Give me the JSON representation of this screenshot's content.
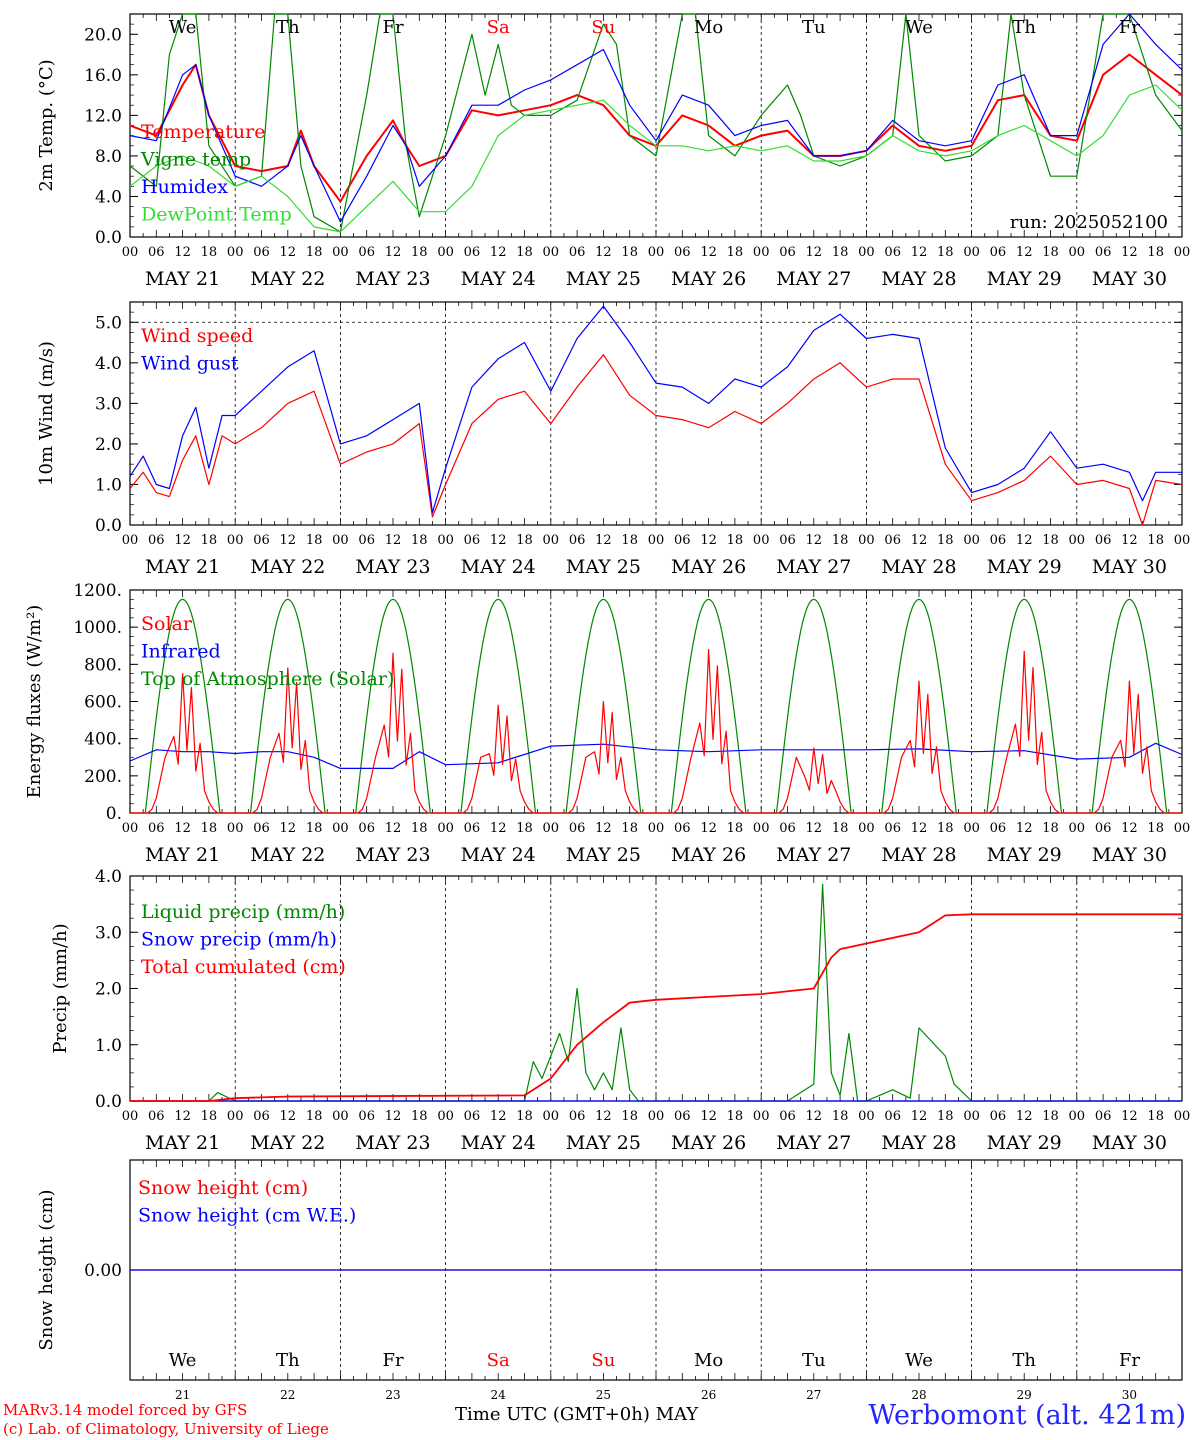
{
  "site_title": "Werbomont (alt. 421m)",
  "credit_line1": "MARv3.14 model forced by GFS",
  "credit_line2": "(c) Lab. of Climatology, University of Liege",
  "bottom_xlabel": "Time UTC (GMT+0h) MAY",
  "run_label": "run: 2025052100",
  "days": [
    {
      "dow": "We",
      "date": "MAY 21",
      "num": "21",
      "weekend": false
    },
    {
      "dow": "Th",
      "date": "MAY 22",
      "num": "22",
      "weekend": false
    },
    {
      "dow": "Fr",
      "date": "MAY 23",
      "num": "23",
      "weekend": false
    },
    {
      "dow": "Sa",
      "date": "MAY 24",
      "num": "24",
      "weekend": true
    },
    {
      "dow": "Su",
      "date": "MAY 25",
      "num": "25",
      "weekend": true
    },
    {
      "dow": "Mo",
      "date": "MAY 26",
      "num": "26",
      "weekend": false
    },
    {
      "dow": "Tu",
      "date": "MAY 27",
      "num": "27",
      "weekend": false
    },
    {
      "dow": "We",
      "date": "MAY 28",
      "num": "28",
      "weekend": false
    },
    {
      "dow": "Th",
      "date": "MAY 29",
      "num": "29",
      "weekend": false
    },
    {
      "dow": "Fr",
      "date": "MAY 30",
      "num": "30",
      "weekend": false
    }
  ],
  "hour_ticks": [
    "00",
    "06",
    "12",
    "18"
  ],
  "colors": {
    "red": "#ff0000",
    "green": "#008800",
    "blue": "#0000ff",
    "lightgreen": "#33dd33",
    "weekend": "#ff0000"
  },
  "chart_data": [
    {
      "type": "line",
      "ylabel": "2m Temp. (°C)",
      "ylim": [
        0,
        22
      ],
      "yticks": [
        "0.0",
        "4.0",
        "8.0",
        "12.0",
        "16.0",
        "20.0"
      ],
      "ytick_values": [
        0,
        4,
        8,
        12,
        16,
        20
      ],
      "x_unit": "hours since MAY 21 00 UTC",
      "series": [
        {
          "name": "Temperature",
          "color": "#ff0000",
          "x": [
            0,
            6,
            12,
            15,
            18,
            24,
            30,
            36,
            39,
            42,
            48,
            54,
            60,
            63,
            66,
            72,
            78,
            84,
            90,
            96,
            102,
            108,
            114,
            120,
            126,
            132,
            138,
            144,
            150,
            156,
            162,
            168,
            174,
            180,
            186,
            192,
            198,
            204,
            210,
            216,
            222,
            228,
            234,
            240
          ],
          "y": [
            11,
            10,
            15,
            17,
            12,
            7,
            6.5,
            7,
            10.5,
            7,
            3.5,
            8,
            11.5,
            9,
            7,
            8,
            12.5,
            12,
            12.5,
            13,
            14,
            13,
            10,
            9,
            12,
            11,
            9,
            10,
            10.5,
            8,
            8,
            8.5,
            11,
            9,
            8.5,
            9,
            13.5,
            14,
            10,
            9.5,
            16,
            18,
            16,
            14
          ]
        },
        {
          "name": "Vigne temp",
          "color": "#008800",
          "x": [
            0,
            6,
            9,
            12,
            15,
            18,
            24,
            30,
            33,
            36,
            39,
            42,
            48,
            54,
            57,
            60,
            63,
            66,
            72,
            78,
            81,
            84,
            87,
            90,
            96,
            102,
            108,
            111,
            114,
            120,
            126,
            129,
            132,
            138,
            144,
            150,
            153,
            156,
            162,
            168,
            174,
            177,
            180,
            186,
            192,
            198,
            201,
            204,
            210,
            216,
            222,
            228,
            234,
            240
          ],
          "y": [
            7,
            5,
            18,
            22,
            22,
            9,
            5,
            6,
            22,
            22,
            7,
            2,
            0.5,
            14,
            22,
            22,
            9,
            2,
            10,
            20,
            14,
            19,
            13,
            12,
            12,
            13.5,
            21,
            19,
            10,
            8,
            22,
            22,
            10,
            8,
            12,
            15,
            12,
            8,
            7,
            8,
            10,
            22,
            10,
            7.5,
            8,
            10,
            22,
            14,
            6,
            6,
            22,
            22,
            14,
            10.5
          ]
        },
        {
          "name": "Humidex",
          "color": "#0000ff",
          "x": [
            0,
            6,
            12,
            15,
            18,
            24,
            30,
            36,
            39,
            42,
            48,
            54,
            60,
            63,
            66,
            72,
            78,
            84,
            90,
            96,
            102,
            108,
            114,
            120,
            126,
            132,
            138,
            144,
            150,
            156,
            162,
            168,
            174,
            180,
            186,
            192,
            198,
            204,
            210,
            216,
            222,
            228,
            234,
            240
          ],
          "y": [
            10,
            9.5,
            16,
            17,
            12,
            6,
            5,
            7,
            10,
            7,
            1.5,
            6,
            11,
            9,
            5,
            8,
            13,
            13,
            14.5,
            15.5,
            17,
            18.5,
            13,
            9.5,
            14,
            13,
            10,
            11,
            11.5,
            8,
            8,
            8.5,
            11.5,
            9.5,
            9,
            9.5,
            15,
            16,
            10,
            10,
            19,
            22,
            19,
            16.5
          ]
        },
        {
          "name": "DewPoint Temp",
          "color": "#33dd33",
          "x": [
            0,
            6,
            12,
            18,
            24,
            30,
            36,
            42,
            48,
            54,
            60,
            66,
            72,
            78,
            84,
            90,
            96,
            102,
            108,
            114,
            120,
            126,
            132,
            138,
            144,
            150,
            156,
            162,
            168,
            174,
            180,
            186,
            192,
            198,
            204,
            210,
            216,
            222,
            228,
            234,
            240
          ],
          "y": [
            5,
            7,
            8,
            7,
            5,
            6,
            4,
            1,
            0.5,
            3,
            5.5,
            2.5,
            2.5,
            5,
            10,
            12,
            12.5,
            13,
            13.5,
            11,
            9,
            9,
            8.5,
            9,
            8.5,
            9,
            7.5,
            7.5,
            8,
            10,
            8.5,
            8,
            8.5,
            10,
            11,
            9.5,
            8,
            10,
            14,
            15,
            12.5
          ]
        }
      ]
    },
    {
      "type": "line",
      "ylabel": "10m Wind (m/s)",
      "ylim": [
        0,
        5.5
      ],
      "yticks": [
        "0.0",
        "1.0",
        "2.0",
        "3.0",
        "4.0",
        "5.0"
      ],
      "ytick_values": [
        0,
        1,
        2,
        3,
        4,
        5
      ],
      "x_unit": "hours since MAY 21 00 UTC",
      "series": [
        {
          "name": "Wind speed",
          "color": "#ff0000",
          "x": [
            0,
            3,
            6,
            9,
            12,
            15,
            18,
            21,
            24,
            30,
            36,
            42,
            48,
            54,
            60,
            66,
            69,
            72,
            78,
            84,
            90,
            96,
            102,
            108,
            114,
            120,
            126,
            132,
            138,
            144,
            150,
            156,
            162,
            168,
            174,
            180,
            186,
            192,
            198,
            204,
            210,
            216,
            222,
            228,
            231,
            234,
            240
          ],
          "y": [
            0.9,
            1.3,
            0.8,
            0.7,
            1.6,
            2.2,
            1.0,
            2.2,
            2.0,
            2.4,
            3.0,
            3.3,
            1.5,
            1.8,
            2.0,
            2.5,
            0.2,
            1.0,
            2.5,
            3.1,
            3.3,
            2.5,
            3.4,
            4.2,
            3.2,
            2.7,
            2.6,
            2.4,
            2.8,
            2.5,
            3.0,
            3.6,
            4.0,
            3.4,
            3.6,
            3.6,
            1.5,
            0.6,
            0.8,
            1.1,
            1.7,
            1.0,
            1.1,
            0.9,
            0.0,
            1.1,
            1.0
          ]
        },
        {
          "name": "Wind gust",
          "color": "#0000ff",
          "x": [
            0,
            3,
            6,
            9,
            12,
            15,
            18,
            21,
            24,
            30,
            36,
            42,
            48,
            54,
            60,
            66,
            69,
            72,
            78,
            84,
            90,
            96,
            102,
            108,
            114,
            120,
            126,
            132,
            138,
            144,
            150,
            156,
            162,
            168,
            174,
            180,
            186,
            192,
            198,
            204,
            210,
            216,
            222,
            228,
            231,
            234,
            240
          ],
          "y": [
            1.2,
            1.7,
            1.0,
            0.9,
            2.2,
            2.9,
            1.4,
            2.7,
            2.7,
            3.3,
            3.9,
            4.3,
            2.0,
            2.2,
            2.6,
            3.0,
            0.3,
            1.4,
            3.4,
            4.1,
            4.5,
            3.3,
            4.6,
            5.4,
            4.5,
            3.5,
            3.4,
            3.0,
            3.6,
            3.4,
            3.9,
            4.8,
            5.2,
            4.6,
            4.7,
            4.6,
            1.9,
            0.8,
            1.0,
            1.4,
            2.3,
            1.4,
            1.5,
            1.3,
            0.6,
            1.3,
            1.3
          ]
        }
      ]
    },
    {
      "type": "line",
      "ylabel": "Energy fluxes (W/m²)",
      "ylim": [
        0,
        1200
      ],
      "yticks": [
        "0.",
        "200.",
        "400.",
        "600.",
        "800.",
        "1000.",
        "1200."
      ],
      "ytick_values": [
        0,
        200,
        400,
        600,
        800,
        1000,
        1200
      ],
      "x_unit": "hours since MAY 21 00 UTC",
      "series": [
        {
          "name": "Solar",
          "color": "#ff0000",
          "day_peaks": [
            750,
            780,
            860,
            580,
            600,
            880,
            350,
            710,
            870,
            710
          ]
        },
        {
          "name": "Infrared",
          "color": "#0000ff",
          "x": [
            0,
            6,
            12,
            18,
            24,
            30,
            36,
            42,
            48,
            60,
            66,
            72,
            84,
            96,
            108,
            120,
            132,
            144,
            156,
            168,
            180,
            192,
            204,
            216,
            228,
            234,
            240
          ],
          "y": [
            280,
            340,
            330,
            330,
            320,
            330,
            330,
            300,
            240,
            240,
            330,
            260,
            270,
            360,
            370,
            340,
            330,
            340,
            340,
            340,
            345,
            330,
            335,
            290,
            300,
            375,
            315
          ]
        },
        {
          "name": "Top of Atmosphere (Solar)",
          "color": "#008800",
          "day_peak": 1150
        }
      ]
    },
    {
      "type": "line",
      "ylabel": "Precip (mm/h)",
      "ylim": [
        0,
        4.0
      ],
      "yticks": [
        "0.0",
        "1.0",
        "2.0",
        "3.0",
        "4.0"
      ],
      "ytick_values": [
        0,
        1,
        2,
        3,
        4
      ],
      "x_unit": "hours since MAY 21 00 UTC",
      "series": [
        {
          "name": "Liquid precip (mm/h)",
          "color": "#008800",
          "x": [
            0,
            18,
            20,
            24,
            90,
            92,
            94,
            96,
            98,
            100,
            102,
            104,
            106,
            108,
            110,
            112,
            114,
            116,
            120,
            150,
            156,
            158,
            160,
            162,
            164,
            166,
            168,
            174,
            178,
            180,
            186,
            188,
            192,
            240
          ],
          "y": [
            0,
            0,
            0.15,
            0,
            0,
            0.7,
            0.4,
            0.8,
            1.2,
            0.7,
            2.0,
            0.5,
            0.2,
            0.5,
            0.2,
            1.3,
            0.2,
            0,
            0,
            0,
            0.3,
            3.85,
            0.5,
            0.1,
            1.2,
            0,
            0,
            0.2,
            0.05,
            1.3,
            0.8,
            0.3,
            0,
            0
          ]
        },
        {
          "name": "Snow precip (mm/h)",
          "color": "#0000ff",
          "x": [
            0,
            240
          ],
          "y": [
            0,
            0
          ]
        },
        {
          "name": "Total cumulated (cm)",
          "color": "#ff0000",
          "x": [
            0,
            18,
            24,
            36,
            90,
            96,
            102,
            108,
            114,
            120,
            132,
            144,
            156,
            160,
            162,
            168,
            174,
            180,
            186,
            192,
            240
          ],
          "y": [
            0,
            0,
            0.05,
            0.08,
            0.1,
            0.4,
            1.0,
            1.4,
            1.75,
            1.8,
            1.85,
            1.9,
            2.0,
            2.55,
            2.7,
            2.8,
            2.9,
            3.0,
            3.3,
            3.32,
            3.32
          ]
        }
      ]
    },
    {
      "type": "line",
      "ylabel": "Snow height (cm)",
      "yticks": [
        "0.00"
      ],
      "ytick_values": [
        0
      ],
      "x_unit": "hours since MAY 21 00 UTC",
      "series": [
        {
          "name": "Snow height (cm)",
          "color": "#ff0000",
          "x": [
            0,
            240
          ],
          "y": [
            0,
            0
          ]
        },
        {
          "name": "Snow height (cm W.E.)",
          "color": "#0000ff",
          "x": [
            0,
            240
          ],
          "y": [
            0,
            0
          ]
        }
      ]
    }
  ]
}
